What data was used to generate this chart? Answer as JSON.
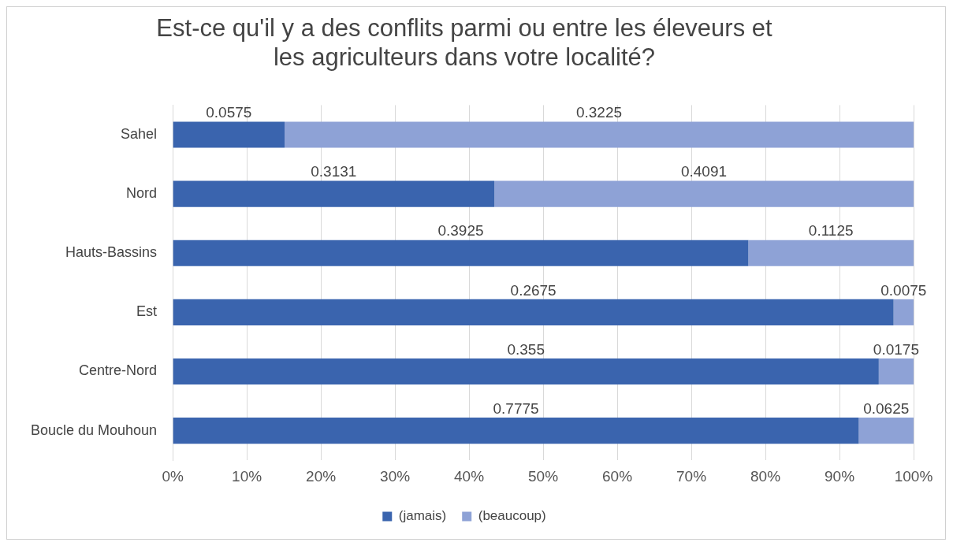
{
  "chart_data": {
    "type": "bar",
    "orientation": "horizontal",
    "stacked": true,
    "title": [
      "Est-ce qu'il y a des conflits parmi ou entre les éleveurs et",
      "les agriculteurs dans votre localité?"
    ],
    "categories": [
      "Sahel",
      "Nord",
      "Hauts-Bassins",
      "Est",
      "Centre-Nord",
      "Boucle du Mouhoun"
    ],
    "series": [
      {
        "name": "(jamais)",
        "color": "#3a64ae",
        "values": [
          15.1,
          43.4,
          77.7,
          97.3,
          95.3,
          92.6
        ]
      },
      {
        "name": "(beaucoup)",
        "color": "#8ea2d6",
        "values": [
          84.9,
          56.6,
          22.3,
          2.7,
          4.7,
          7.4
        ]
      }
    ],
    "annotations": [
      "0.0575",
      "0.3225",
      "0.3131",
      "0.4091",
      "0.3925",
      "0.1125",
      "0.2675",
      "0.0075",
      "0.355",
      "0.0175",
      "0.7775",
      "0.0625"
    ],
    "xlim": [
      0,
      100
    ],
    "xticks": [
      {
        "value": 0,
        "label": "0%"
      },
      {
        "value": 10,
        "label": "10%"
      },
      {
        "value": 20,
        "label": "20%"
      },
      {
        "value": 30,
        "label": "30%"
      },
      {
        "value": 40,
        "label": "40%"
      },
      {
        "value": 50,
        "label": "50%"
      },
      {
        "value": 60,
        "label": "60%"
      },
      {
        "value": 70,
        "label": "70%"
      },
      {
        "value": 80,
        "label": "80%"
      },
      {
        "value": 90,
        "label": "90%"
      },
      {
        "value": 100,
        "label": "100%"
      }
    ],
    "grid": "x",
    "legend": "bottom"
  }
}
